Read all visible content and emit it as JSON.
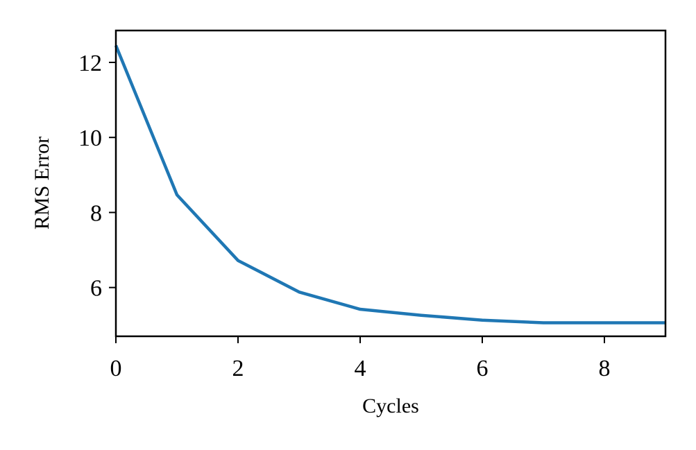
{
  "chart_data": {
    "type": "line",
    "title": "",
    "xlabel": "Cycles",
    "ylabel": "RMS Error",
    "xlim": [
      0,
      9
    ],
    "ylim": [
      4.7,
      12.85
    ],
    "xticks": [
      0,
      2,
      4,
      6,
      8
    ],
    "yticks": [
      6,
      8,
      10,
      12
    ],
    "grid": false,
    "series": [
      {
        "color": "#1f77b4",
        "x": [
          0,
          1,
          2,
          3,
          4,
          5,
          6,
          7,
          8,
          9
        ],
        "y": [
          12.45,
          8.47,
          6.72,
          5.88,
          5.42,
          5.26,
          5.13,
          5.06,
          5.06,
          5.06
        ]
      }
    ]
  }
}
